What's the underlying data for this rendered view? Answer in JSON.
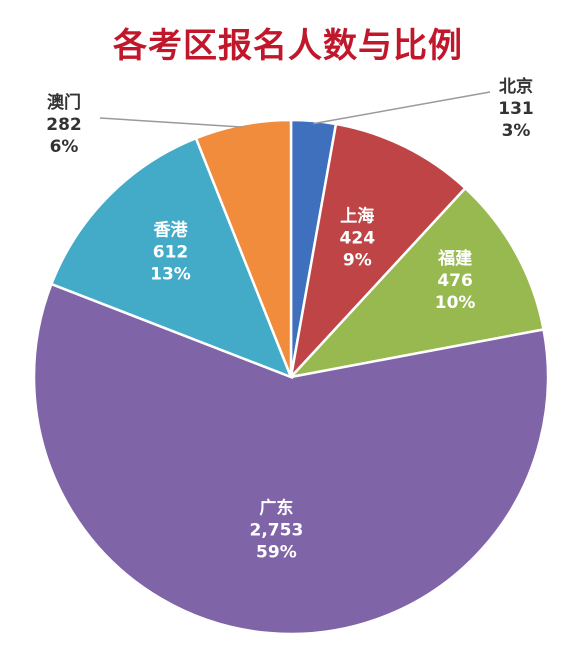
{
  "chart_data": {
    "type": "pie",
    "title": "各考区报名人数与比例",
    "slices": [
      {
        "name": "北京",
        "value": 131,
        "percent": "3%",
        "value_label": "131",
        "color": "#3e70be"
      },
      {
        "name": "上海",
        "value": 424,
        "percent": "9%",
        "value_label": "424",
        "color": "#bf4446"
      },
      {
        "name": "福建",
        "value": 476,
        "percent": "10%",
        "value_label": "476",
        "color": "#97b94f"
      },
      {
        "name": "广东",
        "value": 2753,
        "percent": "59%",
        "value_label": "2,753",
        "color": "#8064a8"
      },
      {
        "name": "香港",
        "value": 612,
        "percent": "13%",
        "value_label": "612",
        "color": "#43abc8"
      },
      {
        "name": "澳门",
        "value": 282,
        "percent": "6%",
        "value_label": "282",
        "color": "#f08c3b"
      }
    ]
  }
}
